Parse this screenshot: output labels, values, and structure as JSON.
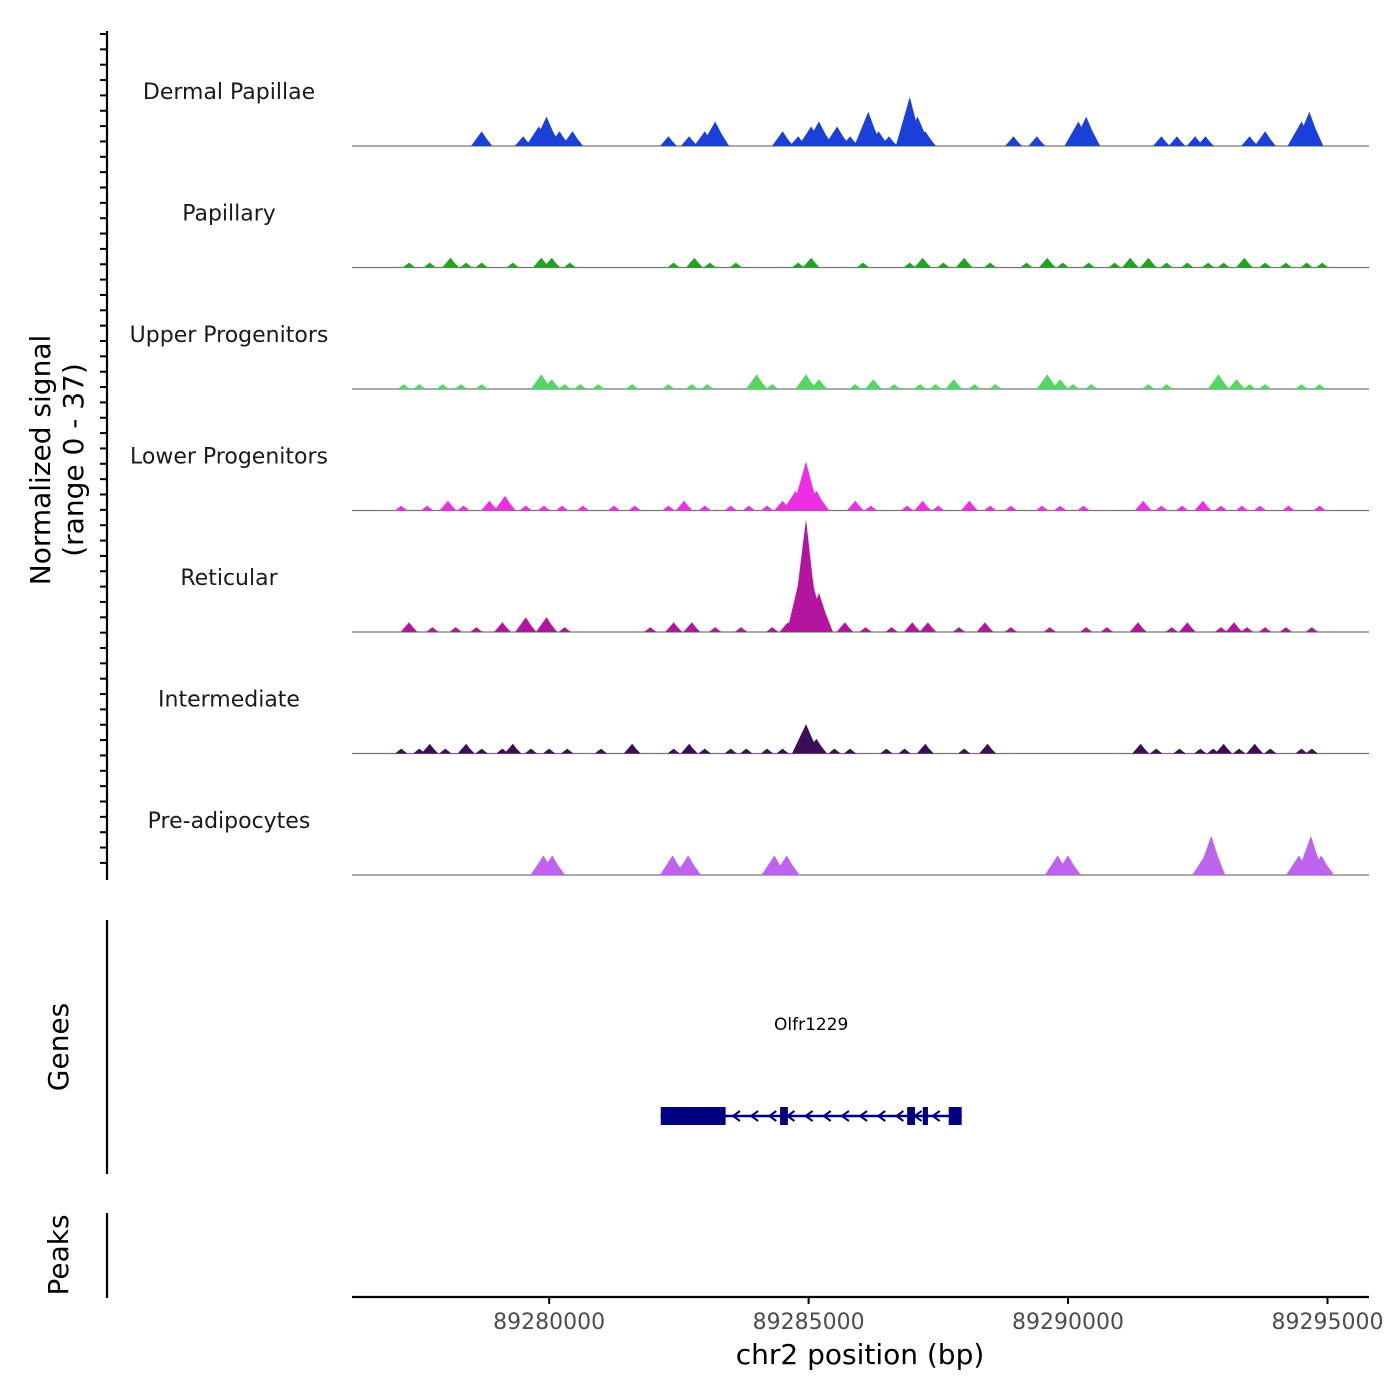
{
  "chart_data": {
    "type": "area",
    "title": "",
    "region": {
      "chromosome": "chr2",
      "start": 89276200,
      "end": 89295800
    },
    "xlabel": "chr2 position (bp)",
    "x_ticks": [
      89280000,
      89285000,
      89290000,
      89295000
    ],
    "x_tick_labels": [
      "89280000",
      "89285000",
      "89290000",
      "89295000"
    ],
    "coverage_ylabel_line1": "Normalized signal",
    "coverage_ylabel_line2": "(range 0 - 37)",
    "y_range": [
      0,
      37
    ],
    "tracks": [
      {
        "name": "Dermal Papillae",
        "color": "#1b3fd9",
        "peaks": [
          [
            89278700,
            3
          ],
          [
            89279500,
            2
          ],
          [
            89279800,
            4
          ],
          [
            89279950,
            6
          ],
          [
            89280200,
            3
          ],
          [
            89280450,
            3
          ],
          [
            89282300,
            2
          ],
          [
            89282700,
            2
          ],
          [
            89283000,
            3
          ],
          [
            89283200,
            5
          ],
          [
            89284500,
            3
          ],
          [
            89284800,
            2
          ],
          [
            89285050,
            4
          ],
          [
            89285200,
            5
          ],
          [
            89285550,
            4
          ],
          [
            89285800,
            2
          ],
          [
            89286150,
            7
          ],
          [
            89286350,
            3
          ],
          [
            89286550,
            2
          ],
          [
            89286950,
            10
          ],
          [
            89287100,
            6
          ],
          [
            89287250,
            3
          ],
          [
            89288950,
            2
          ],
          [
            89289400,
            2
          ],
          [
            89290200,
            5
          ],
          [
            89290350,
            6
          ],
          [
            89291800,
            2
          ],
          [
            89292100,
            2
          ],
          [
            89292450,
            2
          ],
          [
            89292650,
            2
          ],
          [
            89293500,
            2
          ],
          [
            89293800,
            3
          ],
          [
            89294500,
            5
          ],
          [
            89294650,
            7
          ]
        ]
      },
      {
        "name": "Papillary",
        "color": "#1fa51f",
        "peaks": [
          [
            89277300,
            1
          ],
          [
            89277700,
            1
          ],
          [
            89278100,
            2
          ],
          [
            89278400,
            1
          ],
          [
            89278700,
            1
          ],
          [
            89279300,
            1
          ],
          [
            89279850,
            2
          ],
          [
            89280050,
            2
          ],
          [
            89280400,
            1
          ],
          [
            89282400,
            1
          ],
          [
            89282800,
            2
          ],
          [
            89283100,
            1
          ],
          [
            89283600,
            1
          ],
          [
            89284800,
            1
          ],
          [
            89285050,
            2
          ],
          [
            89286050,
            1
          ],
          [
            89286950,
            1
          ],
          [
            89287200,
            2
          ],
          [
            89287600,
            1
          ],
          [
            89288000,
            2
          ],
          [
            89288500,
            1
          ],
          [
            89289200,
            1
          ],
          [
            89289600,
            2
          ],
          [
            89289900,
            1
          ],
          [
            89290400,
            1
          ],
          [
            89290900,
            1
          ],
          [
            89291200,
            2
          ],
          [
            89291550,
            2
          ],
          [
            89291900,
            1
          ],
          [
            89292300,
            1
          ],
          [
            89292700,
            1
          ],
          [
            89293000,
            1
          ],
          [
            89293400,
            2
          ],
          [
            89293800,
            1
          ],
          [
            89294200,
            1
          ],
          [
            89294600,
            1
          ],
          [
            89294900,
            1
          ]
        ]
      },
      {
        "name": "Upper Progenitors",
        "color": "#55d563",
        "peaks": [
          [
            89277200,
            1
          ],
          [
            89277500,
            1
          ],
          [
            89277950,
            1
          ],
          [
            89278300,
            1
          ],
          [
            89278700,
            1
          ],
          [
            89279850,
            3
          ],
          [
            89280050,
            2
          ],
          [
            89280300,
            1
          ],
          [
            89280600,
            1
          ],
          [
            89280950,
            1
          ],
          [
            89281600,
            1
          ],
          [
            89282300,
            1
          ],
          [
            89282750,
            1
          ],
          [
            89283050,
            1
          ],
          [
            89284000,
            3
          ],
          [
            89284300,
            1
          ],
          [
            89284950,
            3
          ],
          [
            89285200,
            2
          ],
          [
            89285900,
            1
          ],
          [
            89286250,
            2
          ],
          [
            89286650,
            1
          ],
          [
            89287150,
            1
          ],
          [
            89287450,
            1
          ],
          [
            89287800,
            2
          ],
          [
            89288200,
            1
          ],
          [
            89288600,
            1
          ],
          [
            89289600,
            3
          ],
          [
            89289850,
            2
          ],
          [
            89290100,
            1
          ],
          [
            89290450,
            1
          ],
          [
            89291550,
            1
          ],
          [
            89291900,
            1
          ],
          [
            89292900,
            3
          ],
          [
            89293250,
            2
          ],
          [
            89293500,
            1
          ],
          [
            89293800,
            1
          ],
          [
            89294500,
            1
          ],
          [
            89294850,
            1
          ]
        ]
      },
      {
        "name": "Lower Progenitors",
        "color": "#ee2ee3",
        "peaks": [
          [
            89277150,
            1
          ],
          [
            89277650,
            1
          ],
          [
            89278050,
            2
          ],
          [
            89278350,
            1
          ],
          [
            89278850,
            2
          ],
          [
            89279150,
            3
          ],
          [
            89279550,
            1
          ],
          [
            89279900,
            1
          ],
          [
            89280250,
            1
          ],
          [
            89280650,
            1
          ],
          [
            89281250,
            1
          ],
          [
            89281650,
            1
          ],
          [
            89282300,
            1
          ],
          [
            89282600,
            2
          ],
          [
            89283000,
            1
          ],
          [
            89283500,
            1
          ],
          [
            89283850,
            1
          ],
          [
            89284200,
            1
          ],
          [
            89284500,
            2
          ],
          [
            89284750,
            4
          ],
          [
            89284950,
            10
          ],
          [
            89285150,
            4
          ],
          [
            89285900,
            2
          ],
          [
            89286200,
            1
          ],
          [
            89286900,
            1
          ],
          [
            89287200,
            2
          ],
          [
            89287500,
            1
          ],
          [
            89288100,
            2
          ],
          [
            89288500,
            1
          ],
          [
            89288900,
            1
          ],
          [
            89289500,
            1
          ],
          [
            89289850,
            1
          ],
          [
            89290300,
            1
          ],
          [
            89291450,
            2
          ],
          [
            89291800,
            1
          ],
          [
            89292200,
            1
          ],
          [
            89292600,
            2
          ],
          [
            89292950,
            1
          ],
          [
            89293350,
            1
          ],
          [
            89293700,
            1
          ],
          [
            89294250,
            1
          ],
          [
            89294850,
            1
          ]
        ]
      },
      {
        "name": "Reticular",
        "color": "#b4159e",
        "peaks": [
          [
            89277300,
            2
          ],
          [
            89277750,
            1
          ],
          [
            89278200,
            1
          ],
          [
            89278600,
            1
          ],
          [
            89279100,
            2
          ],
          [
            89279550,
            3
          ],
          [
            89279950,
            3
          ],
          [
            89280300,
            1
          ],
          [
            89281950,
            1
          ],
          [
            89282400,
            2
          ],
          [
            89282750,
            2
          ],
          [
            89283200,
            1
          ],
          [
            89283700,
            1
          ],
          [
            89284300,
            1
          ],
          [
            89284600,
            2
          ],
          [
            89284850,
            12
          ],
          [
            89284950,
            23
          ],
          [
            89285100,
            9
          ],
          [
            89285200,
            8
          ],
          [
            89285700,
            2
          ],
          [
            89286100,
            1
          ],
          [
            89286600,
            1
          ],
          [
            89287000,
            2
          ],
          [
            89287300,
            2
          ],
          [
            89287900,
            1
          ],
          [
            89288400,
            2
          ],
          [
            89288900,
            1
          ],
          [
            89289650,
            1
          ],
          [
            89290350,
            1
          ],
          [
            89290750,
            1
          ],
          [
            89291350,
            2
          ],
          [
            89292000,
            1
          ],
          [
            89292300,
            2
          ],
          [
            89292950,
            1
          ],
          [
            89293200,
            2
          ],
          [
            89293450,
            1
          ],
          [
            89293800,
            1
          ],
          [
            89294200,
            1
          ],
          [
            89294700,
            1
          ]
        ]
      },
      {
        "name": "Intermediate",
        "color": "#3c0e5a",
        "peaks": [
          [
            89277150,
            1
          ],
          [
            89277500,
            1
          ],
          [
            89277700,
            2
          ],
          [
            89278000,
            1
          ],
          [
            89278400,
            2
          ],
          [
            89278700,
            1
          ],
          [
            89279100,
            1
          ],
          [
            89279300,
            2
          ],
          [
            89279650,
            1
          ],
          [
            89280000,
            1
          ],
          [
            89280350,
            1
          ],
          [
            89281000,
            1
          ],
          [
            89281600,
            2
          ],
          [
            89282400,
            1
          ],
          [
            89282700,
            2
          ],
          [
            89283000,
            1
          ],
          [
            89283500,
            1
          ],
          [
            89283800,
            1
          ],
          [
            89284200,
            1
          ],
          [
            89284500,
            1
          ],
          [
            89284950,
            6
          ],
          [
            89285150,
            3
          ],
          [
            89285500,
            1
          ],
          [
            89285800,
            1
          ],
          [
            89286500,
            1
          ],
          [
            89286850,
            1
          ],
          [
            89287250,
            2
          ],
          [
            89288000,
            1
          ],
          [
            89288450,
            2
          ],
          [
            89291400,
            2
          ],
          [
            89291700,
            1
          ],
          [
            89292150,
            1
          ],
          [
            89292550,
            1
          ],
          [
            89292800,
            1
          ],
          [
            89293000,
            2
          ],
          [
            89293300,
            1
          ],
          [
            89293600,
            2
          ],
          [
            89293900,
            1
          ],
          [
            89294500,
            1
          ],
          [
            89294700,
            1
          ]
        ]
      },
      {
        "name": "Pre-adipocytes",
        "color": "#bd63ee",
        "peaks": [
          [
            89279890,
            4
          ],
          [
            89280060,
            4
          ],
          [
            89282380,
            4
          ],
          [
            89282680,
            4
          ],
          [
            89284340,
            4
          ],
          [
            89284580,
            4
          ],
          [
            89289800,
            4
          ],
          [
            89290000,
            4
          ],
          [
            89292640,
            4
          ],
          [
            89292760,
            8
          ],
          [
            89294450,
            4
          ],
          [
            89294600,
            4
          ],
          [
            89294680,
            8
          ],
          [
            89294880,
            4
          ]
        ]
      }
    ],
    "genes_label": "Genes",
    "peaks_label": "Peaks",
    "gene": {
      "name": "Olfr1229",
      "color": "#000080",
      "start": 89282150,
      "end": 89287950,
      "strand": "-",
      "exons": [
        [
          89282150,
          89283400
        ],
        [
          89284450,
          89284600
        ],
        [
          89286900,
          89287050
        ],
        [
          89287200,
          89287300
        ],
        [
          89287700,
          89287950
        ]
      ]
    }
  }
}
